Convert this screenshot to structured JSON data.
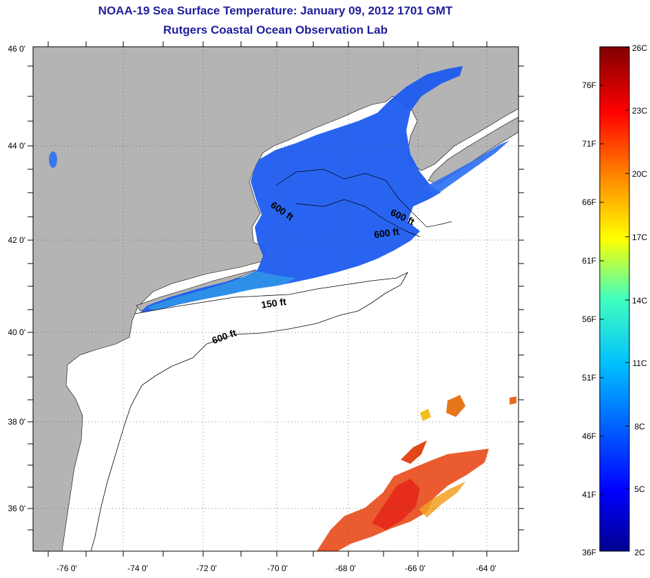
{
  "header": {
    "title_line1": "NOAA-19 Sea Surface Temperature:  January 09, 2012 1701 GMT",
    "title_line2": "Rutgers Coastal Ocean Observation Lab"
  },
  "map": {
    "lon_labels": [
      "-76 0'",
      "-74 0'",
      "-72 0'",
      "-70 0'",
      "-68 0'",
      "-66 0'",
      "-64 0'"
    ],
    "lat_labels": [
      "46 0'",
      "44 0'",
      "42 0'",
      "40 0'",
      "38 0'",
      "36 0'"
    ],
    "contour_labels": [
      "600 ft",
      "600 ft",
      "600 ft",
      "150 ft",
      "600 ft"
    ],
    "colors": {
      "land": "#b4b4b4",
      "no_data": "#ffffff",
      "cold_water": "#1e5cf0",
      "warm_water": "#e84a18"
    }
  },
  "colorbar": {
    "fahrenheit": [
      "76F",
      "71F",
      "66F",
      "61F",
      "56F",
      "51F",
      "46F",
      "41F",
      "36F"
    ],
    "celsius": [
      "26C",
      "23C",
      "20C",
      "17C",
      "14C",
      "11C",
      "8C",
      "5C",
      "2C"
    ]
  }
}
